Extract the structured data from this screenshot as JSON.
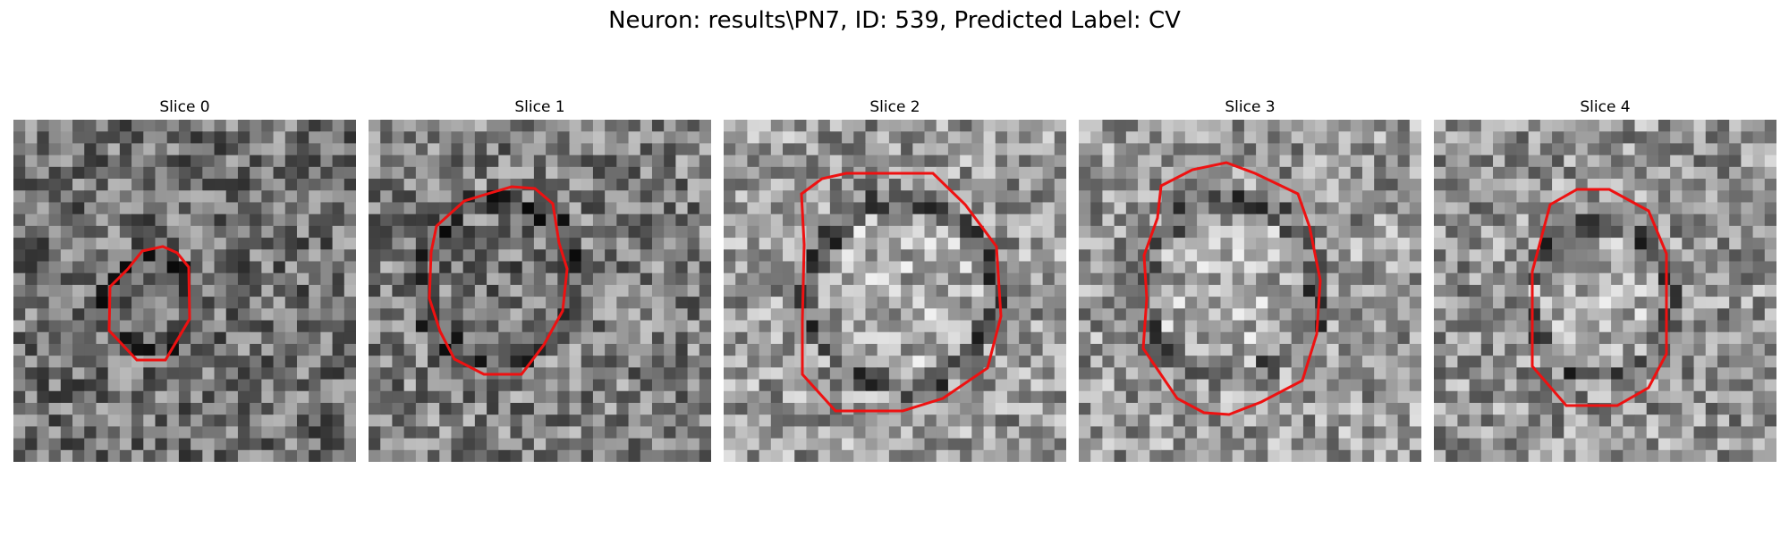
{
  "figure": {
    "title": "Neuron: results\\PN7, ID: 539, Predicted Label: CV",
    "contour_color": "#ee1111"
  },
  "panels": [
    {
      "title": "Slice 0",
      "brightness": 0.45,
      "blob_dark": true
    },
    {
      "title": "Slice 1",
      "brightness": 0.5,
      "blob_dark": true
    },
    {
      "title": "Slice 2",
      "brightness": 0.6,
      "blob_dark": false
    },
    {
      "title": "Slice 3",
      "brightness": 0.6,
      "blob_dark": false
    },
    {
      "title": "Slice 4",
      "brightness": 0.58,
      "blob_dark": false
    }
  ]
}
